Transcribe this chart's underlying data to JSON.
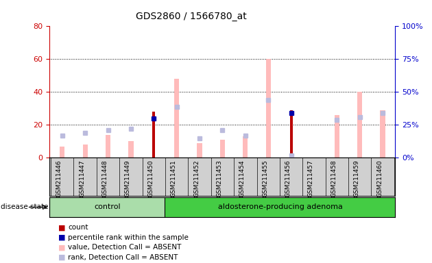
{
  "title": "GDS2860 / 1566780_at",
  "samples": [
    "GSM211446",
    "GSM211447",
    "GSM211448",
    "GSM211449",
    "GSM211450",
    "GSM211451",
    "GSM211452",
    "GSM211453",
    "GSM211454",
    "GSM211455",
    "GSM211456",
    "GSM211457",
    "GSM211458",
    "GSM211459",
    "GSM211460"
  ],
  "control_count": 5,
  "count_values": [
    0,
    0,
    0,
    0,
    28,
    0,
    0,
    0,
    0,
    0,
    29,
    0,
    0,
    0,
    0
  ],
  "percentile_values": [
    0,
    0,
    0,
    0,
    30,
    0,
    0,
    0,
    0,
    0,
    34,
    0,
    0,
    0,
    0
  ],
  "value_absent": [
    7,
    8,
    14,
    10,
    0,
    48,
    9,
    11,
    13,
    60,
    0,
    0,
    26,
    40,
    29
  ],
  "rank_absent": [
    17,
    19,
    21,
    22,
    0,
    39,
    15,
    21,
    17,
    44,
    2,
    0,
    29,
    31,
    34
  ],
  "ylim_left": [
    0,
    80
  ],
  "ylim_right": [
    0,
    100
  ],
  "yticks_left": [
    0,
    20,
    40,
    60,
    80
  ],
  "yticks_right": [
    0,
    25,
    50,
    75,
    100
  ],
  "count_color": "#bb0000",
  "percentile_color": "#0000aa",
  "value_absent_color": "#ffbbbb",
  "rank_absent_color": "#bbbbdd",
  "left_tick_color": "#cc0000",
  "right_tick_color": "#0000cc",
  "gray_bg": "#d0d0d0",
  "control_green": "#aaddaa",
  "adenoma_green": "#44cc44"
}
